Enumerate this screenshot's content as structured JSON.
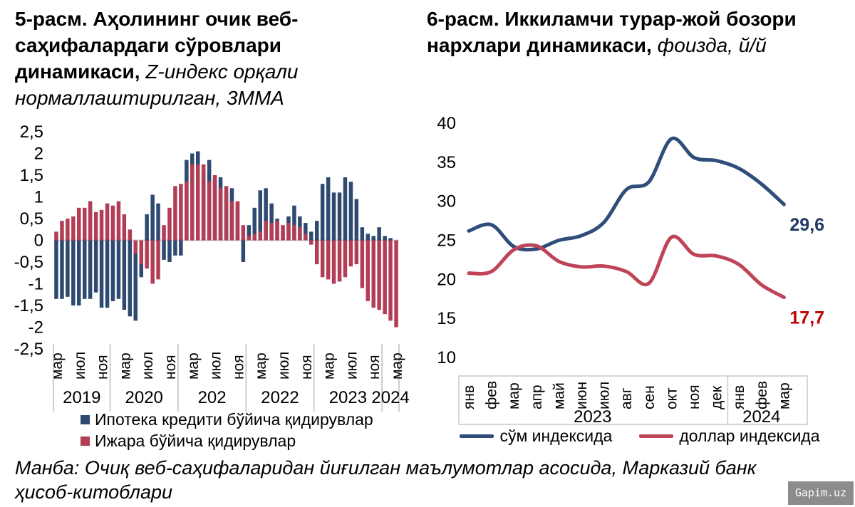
{
  "chart_data": [
    {
      "type": "bar",
      "title_bold": "5-расм. Аҳолининг очик веб-саҳифалардаги сўровлари динамикаси,",
      "title_italic": " Z-индекс орқали нормаллаштирилган, 3ММА",
      "ylim": [
        -2.5,
        2.5
      ],
      "yticks": [
        {
          "v": 2.5,
          "label": "2,5"
        },
        {
          "v": 2,
          "label": "2"
        },
        {
          "v": 1.5,
          "label": "1,5"
        },
        {
          "v": 1,
          "label": "1"
        },
        {
          "v": 0.5,
          "label": "0,5"
        },
        {
          "v": 0,
          "label": "0"
        },
        {
          "v": -0.5,
          "label": "-0,5"
        },
        {
          "v": -1,
          "label": "-1"
        },
        {
          "v": -1.5,
          "label": "-1,5"
        },
        {
          "v": -2,
          "label": "-2"
        },
        {
          "v": -2.5,
          "label": "-2,5"
        }
      ],
      "x_start": "2019-03",
      "x_freq": "monthly",
      "xticks": [
        {
          "i": 0,
          "label": "мар"
        },
        {
          "i": 4,
          "label": "июл"
        },
        {
          "i": 8,
          "label": "ноя"
        },
        {
          "i": 12,
          "label": "мар"
        },
        {
          "i": 16,
          "label": "июл"
        },
        {
          "i": 20,
          "label": "ноя"
        },
        {
          "i": 24,
          "label": "мар"
        },
        {
          "i": 28,
          "label": "июл"
        },
        {
          "i": 32,
          "label": "ноя"
        },
        {
          "i": 36,
          "label": "мар"
        },
        {
          "i": 40,
          "label": "июл"
        },
        {
          "i": 44,
          "label": "ноя"
        },
        {
          "i": 48,
          "label": "мар"
        },
        {
          "i": 52,
          "label": "июл"
        },
        {
          "i": 56,
          "label": "ноя"
        },
        {
          "i": 60,
          "label": "мар"
        }
      ],
      "years": [
        {
          "label": "2019",
          "from": 0,
          "to": 9
        },
        {
          "label": "2020",
          "from": 10,
          "to": 21
        },
        {
          "label": "202",
          "from": 22,
          "to": 33
        },
        {
          "label": "2022",
          "from": 34,
          "to": 45
        },
        {
          "label": "2023",
          "from": 46,
          "to": 57
        },
        {
          "label": "2024",
          "from": 58,
          "to": 60
        }
      ],
      "year_boundaries": [
        0,
        10,
        22,
        34,
        46,
        58,
        61
      ],
      "series": [
        {
          "name": "Ипотека кредити бўйича қидирувлар",
          "color": "#2E4A70",
          "values": [
            -1.35,
            -1.35,
            -1.3,
            -1.5,
            -1.5,
            -1.35,
            -1.35,
            -1.2,
            -1.55,
            -1.55,
            -1.4,
            -1.35,
            -1.6,
            -1.75,
            -1.85,
            -0.85,
            0.6,
            1.05,
            0.85,
            -0.45,
            -0.5,
            -0.35,
            -0.35,
            1.85,
            2.0,
            2.05,
            1.6,
            1.85,
            1.4,
            1.45,
            1.1,
            1.2,
            0.85,
            -0.5,
            0.35,
            0.75,
            1.15,
            1.2,
            0.85,
            0.5,
            0.2,
            0.55,
            0.8,
            0.55,
            0.4,
            0.2,
            0.45,
            1.3,
            1.45,
            1.1,
            1.1,
            1.45,
            1.35,
            0.95,
            0.3,
            0.15,
            0.1,
            0.3,
            0.1,
            0.05,
            -0.05
          ]
        },
        {
          "name": "Ижара бўйича қидирувлар",
          "color": "#B23E55",
          "values": [
            0.2,
            0.45,
            0.5,
            0.55,
            0.75,
            0.75,
            0.9,
            0.65,
            0.7,
            0.85,
            0.8,
            0.9,
            0.6,
            0.25,
            -0.3,
            -0.55,
            -0.65,
            -1.0,
            -0.9,
            0.35,
            0.75,
            1.25,
            1.3,
            1.35,
            1.75,
            1.75,
            1.75,
            1.35,
            1.5,
            1.2,
            1.25,
            0.9,
            0.9,
            0.35,
            0.1,
            0.15,
            0.2,
            0.45,
            0.4,
            0.45,
            0.35,
            0.4,
            0.35,
            0.3,
            0.15,
            -0.1,
            -0.55,
            -0.85,
            -0.9,
            -1.0,
            -0.95,
            -0.85,
            -0.6,
            -0.55,
            -1.1,
            -1.4,
            -1.55,
            -1.6,
            -1.7,
            -1.85,
            -2.0
          ]
        }
      ],
      "zero_line_color": "#D0CECE",
      "separator_color": "#BFBFBF"
    },
    {
      "type": "line",
      "title_bold": "6-расм. Иккиламчи турар-жой бозори нархлари динамикаси,",
      "title_italic": " фоизда, й/й",
      "ylim": [
        10,
        40
      ],
      "yticks": [
        "40",
        "35",
        "30",
        "25",
        "20",
        "15",
        "10"
      ],
      "x": [
        "янв",
        "фев",
        "мар",
        "апр",
        "май",
        "июн",
        "июл",
        "авг",
        "сен",
        "окт",
        "ноя",
        "дек",
        "янв",
        "фев",
        "мар"
      ],
      "years": [
        {
          "label": "2023",
          "from": 0,
          "to": 11
        },
        {
          "label": "2024",
          "from": 12,
          "to": 14
        }
      ],
      "series": [
        {
          "name": "сўм индексида",
          "color": "#2F4D7A",
          "end_label": "29,6",
          "end_label_color": "#1F3864",
          "values": [
            26.2,
            27.0,
            24.2,
            23.9,
            25.0,
            25.6,
            27.3,
            31.5,
            32.5,
            38.0,
            35.6,
            35.2,
            34.2,
            32.2,
            29.6
          ]
        },
        {
          "name": "доллар индексида",
          "color": "#BF4458",
          "end_label": "17,7",
          "end_label_color": "#C00000",
          "values": [
            20.8,
            21.0,
            23.8,
            24.3,
            22.3,
            21.6,
            21.7,
            21.0,
            19.5,
            25.4,
            23.2,
            23.0,
            21.9,
            19.3,
            17.7
          ]
        }
      ],
      "box_color": "#C9C9C9"
    }
  ],
  "source_note": "Манба: Очиқ веб-саҳифаларидан йиғилган маълумотлар асосида, Марказий банк ҳисоб-китоблари",
  "watermark": "Gapim.uz"
}
